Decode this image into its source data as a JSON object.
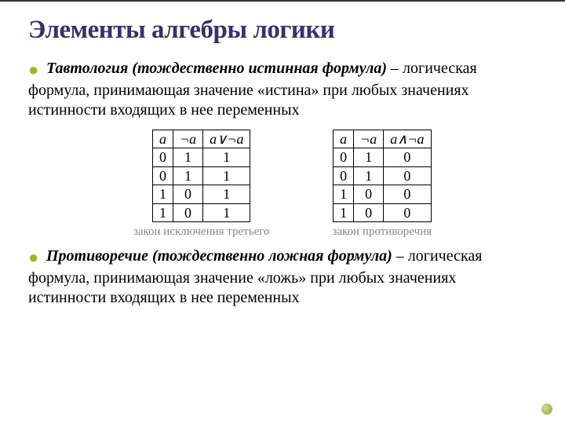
{
  "title": "Элементы алгебры логики",
  "para1": {
    "term": "Тавтология",
    "sub": "(тождественно истинная формула)",
    "rest": " –  логическая формула, принимающая значение «истина» при любых значениях истинности входящих в нее переменных"
  },
  "tables": {
    "left": {
      "headers": [
        "a",
        "¬a",
        "a∨¬a"
      ],
      "rows": [
        [
          "0",
          "1",
          "1"
        ],
        [
          "0",
          "1",
          "1"
        ],
        [
          "1",
          "0",
          "1"
        ],
        [
          "1",
          "0",
          "1"
        ]
      ],
      "caption": "закон исключения третьего"
    },
    "right": {
      "headers": [
        "a",
        "¬a",
        "a∧¬a"
      ],
      "rows": [
        [
          "0",
          "1",
          "0"
        ],
        [
          "0",
          "1",
          "0"
        ],
        [
          "1",
          "0",
          "0"
        ],
        [
          "1",
          "0",
          "0"
        ]
      ],
      "caption": "закон противоречия"
    }
  },
  "para2": {
    "term": "Противоречие",
    "sub": "(тождественно ложная формула)",
    "rest": " –  логическая формула, принимающая значение «ложь» при любых значениях истинности входящих в нее переменных"
  }
}
